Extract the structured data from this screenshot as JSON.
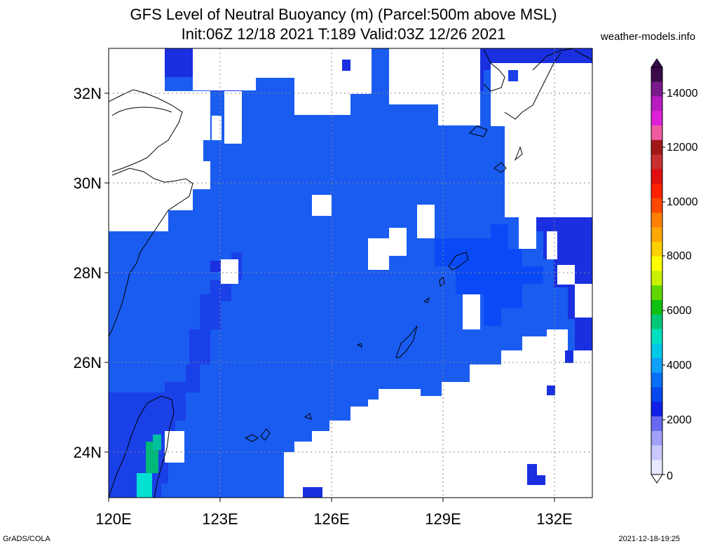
{
  "header": {
    "title_line1": "GFS Level of Neutral Buoyancy (m) (Parcel:500m above MSL)",
    "title_line2": "Init:06Z 12/18 2021 T:189 Valid:03Z 12/26 2021",
    "site": "weather-models.info"
  },
  "map": {
    "lat_labels": [
      "32N",
      "30N",
      "28N",
      "26N",
      "24N"
    ],
    "lon_labels": [
      "120E",
      "123E",
      "126E",
      "129E",
      "132E"
    ]
  },
  "colorbar": {
    "labels": [
      "14000",
      "12000",
      "10000",
      "8000",
      "6000",
      "4000",
      "2000",
      "0"
    ],
    "colors": [
      "#3a0a4a",
      "#7a1a8a",
      "#b81cc0",
      "#e020d8",
      "#f05aa0",
      "#a01818",
      "#c83030",
      "#e01010",
      "#ff2000",
      "#ff4800",
      "#ff8000",
      "#ffa800",
      "#ffd000",
      "#ffff00",
      "#c8f000",
      "#60d800",
      "#10c010",
      "#00c878",
      "#00e0c0",
      "#00c8e8",
      "#10a0f8",
      "#0870f8",
      "#0848f0",
      "#1020e8",
      "#6868f0",
      "#a0a0f8",
      "#c8c8ff",
      "#e8e8ff"
    ]
  },
  "footer": {
    "left": "GrADS/COLA",
    "right": "2021-12-18-19:25"
  }
}
